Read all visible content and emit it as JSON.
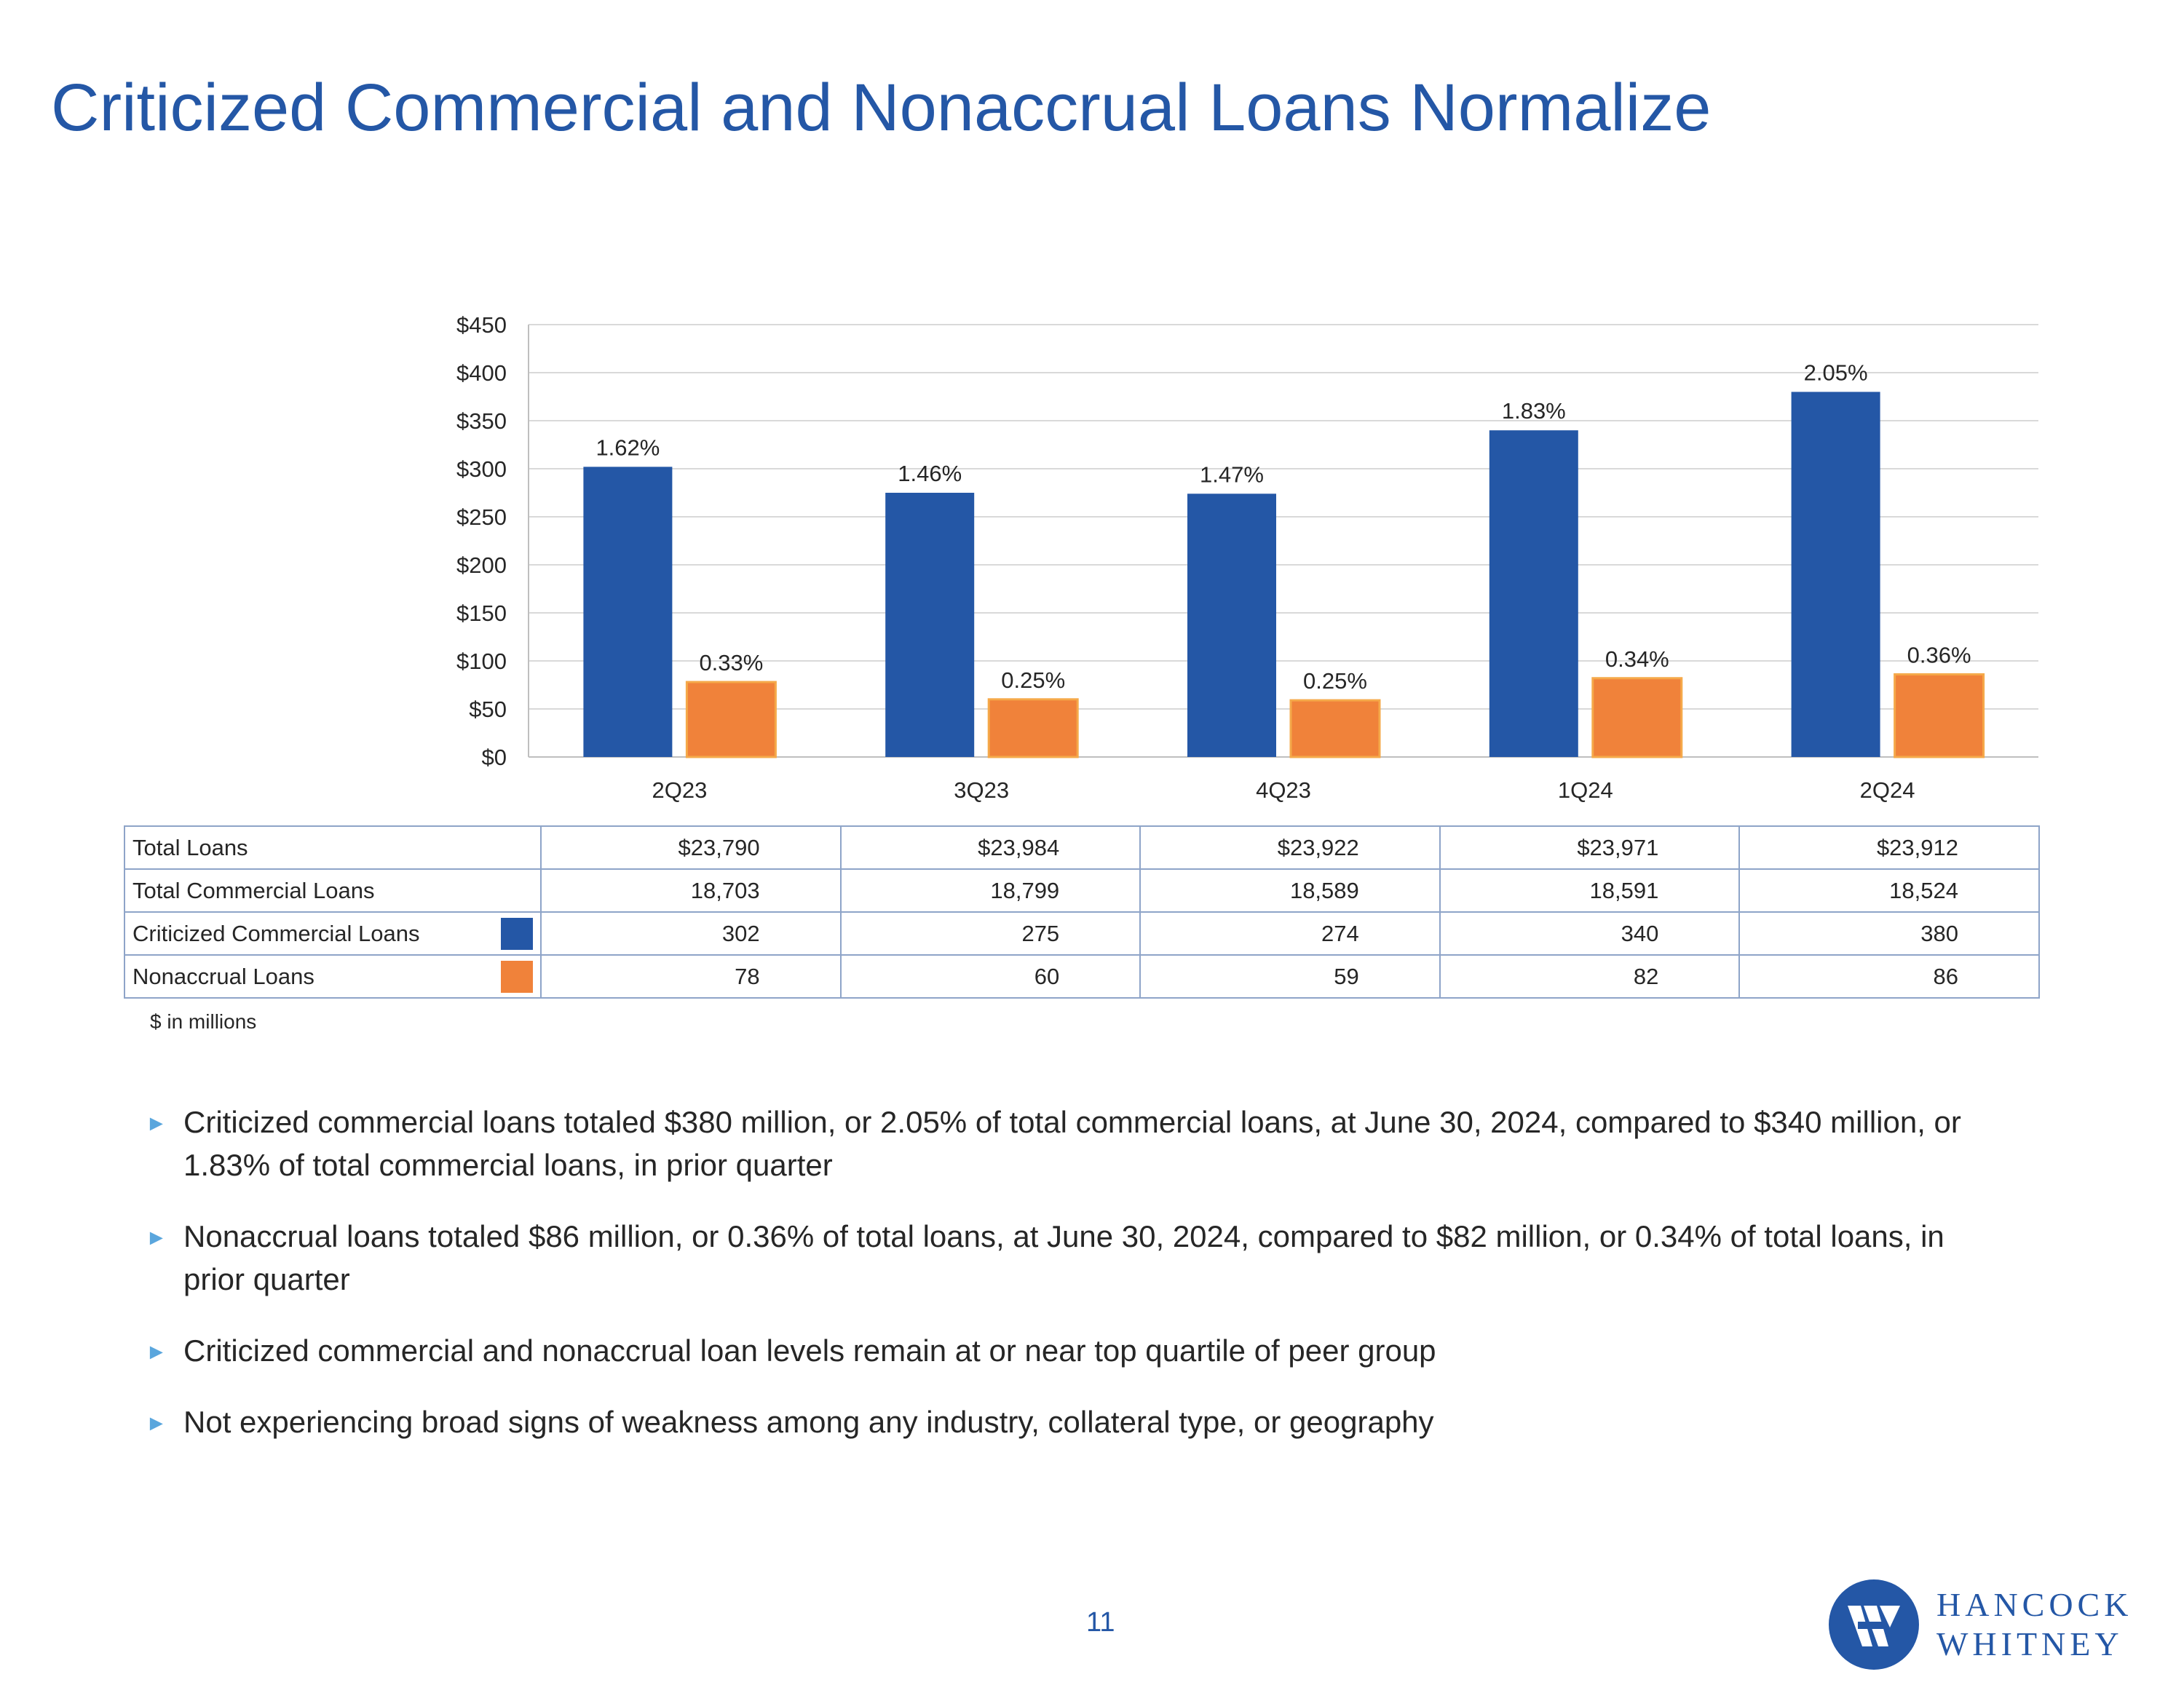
{
  "title": "Criticized Commercial and Nonaccrual Loans Normalize",
  "chart_data": {
    "type": "bar",
    "categories": [
      "2Q23",
      "3Q23",
      "4Q23",
      "1Q24",
      "2Q24"
    ],
    "series": [
      {
        "name": "Criticized Commercial Loans",
        "color": "#2457a6",
        "values": [
          302,
          275,
          274,
          340,
          380
        ],
        "labels": [
          "1.62%",
          "1.46%",
          "1.47%",
          "1.83%",
          "2.05%"
        ]
      },
      {
        "name": "Nonaccrual Loans",
        "color": "#f0823a",
        "values": [
          78,
          60,
          59,
          82,
          86
        ],
        "labels": [
          "0.33%",
          "0.25%",
          "0.25%",
          "0.34%",
          "0.36%"
        ]
      }
    ],
    "y_ticks": [
      "$0",
      "$50",
      "$100",
      "$150",
      "$200",
      "$250",
      "$300",
      "$350",
      "$400",
      "$450"
    ],
    "ylim": [
      0,
      450
    ],
    "grid": true
  },
  "table": {
    "rows": [
      {
        "label": "Total Loans",
        "values": [
          "$23,790",
          "$23,984",
          "$23,922",
          "$23,971",
          "$23,912"
        ]
      },
      {
        "label": "Total Commercial Loans",
        "values": [
          "18,703",
          "18,799",
          "18,589",
          "18,591",
          "18,524"
        ]
      },
      {
        "label": "Criticized Commercial Loans",
        "swatch": "#2457a6",
        "values": [
          "302",
          "275",
          "274",
          "340",
          "380"
        ]
      },
      {
        "label": "Nonaccrual Loans",
        "swatch": "#f0823a",
        "values": [
          "78",
          "60",
          "59",
          "82",
          "86"
        ]
      }
    ]
  },
  "note": "$ in millions",
  "bullets": [
    "Criticized commercial loans totaled $380 million, or 2.05% of total commercial loans, at June 30, 2024, compared to $340 million, or 1.83% of total commercial loans, in prior quarter",
    "Nonaccrual loans totaled $86 million, or 0.36% of total loans, at June 30, 2024, compared to $82 million, or 0.34% of total loans, in prior quarter",
    "Criticized commercial and nonaccrual loan levels remain at or near top quartile of peer group",
    "Not experiencing broad signs of weakness among any industry, collateral type, or geography"
  ],
  "page_number": "11",
  "logo": {
    "line1": "HANCOCK",
    "line2": "WHITNEY"
  }
}
